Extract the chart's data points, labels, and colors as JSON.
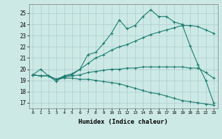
{
  "xlabel": "Humidex (Indice chaleur)",
  "ylabel": "",
  "background_color": "#cce9e5",
  "grid_color": "#aacccc",
  "line_color": "#1a7a6e",
  "xlim": [
    -0.5,
    23.5
  ],
  "ylim": [
    16.5,
    25.8
  ],
  "xticks": [
    0,
    1,
    2,
    3,
    4,
    5,
    6,
    7,
    8,
    9,
    10,
    11,
    12,
    13,
    14,
    15,
    16,
    17,
    18,
    19,
    20,
    21,
    22,
    23
  ],
  "yticks": [
    17,
    18,
    19,
    20,
    21,
    22,
    23,
    24,
    25
  ],
  "series": [
    [
      19.5,
      20.0,
      19.4,
      18.9,
      19.4,
      19.5,
      20.0,
      21.3,
      21.5,
      22.3,
      23.2,
      24.4,
      23.6,
      23.9,
      24.7,
      25.3,
      24.7,
      24.7,
      24.2,
      24.0,
      22.1,
      20.4,
      19.0,
      17.0
    ],
    [
      19.5,
      19.4,
      19.4,
      19.1,
      19.4,
      19.6,
      20.0,
      20.5,
      21.0,
      21.3,
      21.7,
      22.0,
      22.2,
      22.5,
      22.8,
      23.1,
      23.3,
      23.5,
      23.7,
      23.9,
      23.9,
      23.8,
      23.5,
      23.2
    ],
    [
      19.5,
      19.4,
      19.4,
      19.1,
      19.3,
      19.4,
      19.5,
      19.7,
      19.8,
      19.9,
      20.0,
      20.0,
      20.1,
      20.1,
      20.2,
      20.2,
      20.2,
      20.2,
      20.2,
      20.2,
      20.1,
      20.1,
      19.7,
      19.2
    ],
    [
      19.5,
      19.4,
      19.4,
      19.1,
      19.2,
      19.2,
      19.1,
      19.1,
      19.0,
      18.9,
      18.8,
      18.7,
      18.5,
      18.3,
      18.1,
      17.9,
      17.8,
      17.6,
      17.4,
      17.2,
      17.1,
      17.0,
      16.9,
      16.8
    ]
  ]
}
